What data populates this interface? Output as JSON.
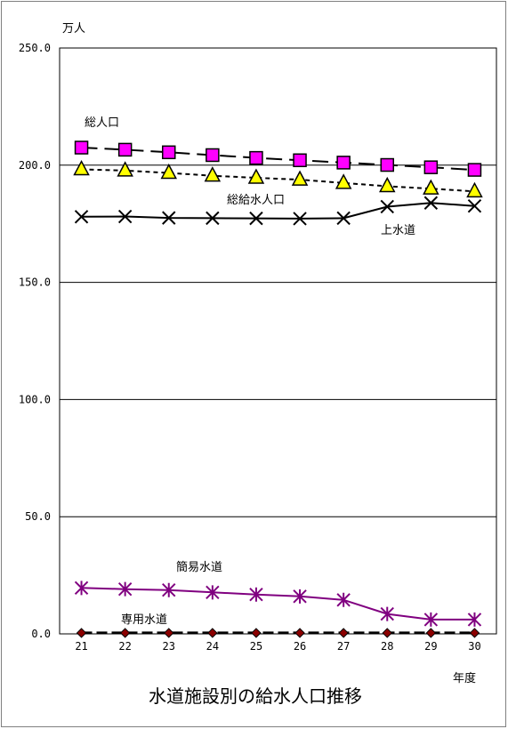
{
  "chart_data": {
    "type": "line",
    "title": "水道施設別の給水人口推移",
    "ylabel": "万人",
    "xlabel": "年度",
    "ylim": [
      0,
      250
    ],
    "yticks": [
      "0.0",
      "50.0",
      "100.0",
      "150.0",
      "200.0",
      "250.0"
    ],
    "categories": [
      "21",
      "22",
      "23",
      "24",
      "25",
      "26",
      "27",
      "28",
      "29",
      "30"
    ],
    "grid": true,
    "legend": "none",
    "series": [
      {
        "name": "総人口",
        "marker": "square",
        "color": "#ff00ff",
        "line": "long-dash",
        "values": [
          207.5,
          206.6,
          205.5,
          204.3,
          203.1,
          202.1,
          201.1,
          200.1,
          199.1,
          198.0
        ]
      },
      {
        "name": "総給水人口",
        "marker": "triangle",
        "color": "#ffff00",
        "line": "short-dash",
        "values": [
          198.2,
          197.7,
          196.7,
          195.5,
          194.6,
          193.8,
          192.4,
          191.0,
          190.0,
          188.8
        ]
      },
      {
        "name": "上水道",
        "marker": "x",
        "color": "#000000",
        "line": "solid",
        "values": [
          178.0,
          178.1,
          177.5,
          177.4,
          177.3,
          177.2,
          177.4,
          182.3,
          183.9,
          182.6
        ]
      },
      {
        "name": "簡易水道",
        "marker": "star",
        "color": "#800080",
        "line": "solid",
        "values": [
          19.6,
          19.1,
          18.7,
          17.7,
          16.8,
          16.0,
          14.5,
          8.5,
          6.1,
          6.1
        ]
      },
      {
        "name": "専用水道",
        "marker": "diamond",
        "color": "#8b0000",
        "line": "dash",
        "values": [
          0.4,
          0.4,
          0.4,
          0.4,
          0.4,
          0.4,
          0.4,
          0.4,
          0.4,
          0.4
        ]
      }
    ]
  }
}
